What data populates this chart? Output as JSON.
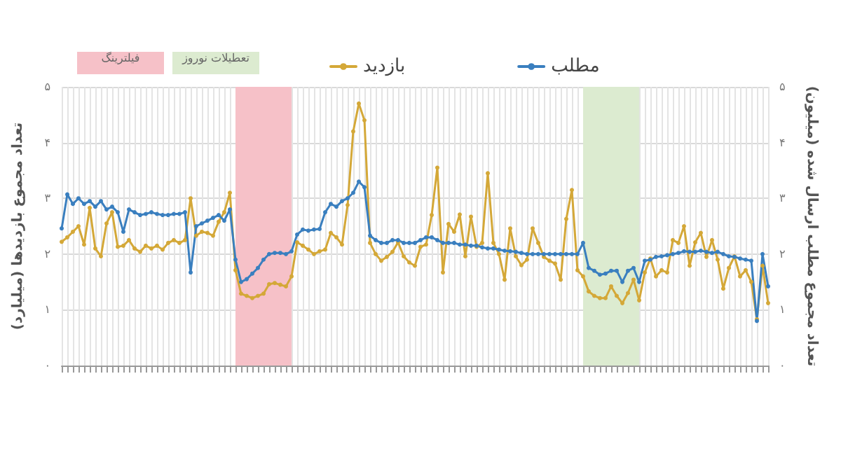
{
  "chart_data": {
    "type": "line",
    "ylabel": "تعداد مجموع بازدیدها (میلیارد)",
    "y2label": "تعداد مجموع مطلب ارسال شده (میلیون)",
    "categories": [
      null,
      null,
      null,
      null,
      null,
      null,
      null,
      null,
      null,
      null,
      null,
      null,
      null,
      null,
      null,
      null,
      null,
      null,
      null,
      null,
      null,
      null,
      null,
      null,
      null,
      null,
      null,
      null,
      null,
      null,
      null,
      null,
      null,
      null,
      null,
      null,
      null,
      null,
      null,
      null,
      null,
      null,
      null,
      null,
      null,
      null,
      null,
      null,
      null,
      null,
      null,
      null,
      null,
      null,
      null,
      null,
      null,
      null,
      null,
      null,
      null,
      null,
      null,
      null,
      null,
      null,
      null,
      null,
      null,
      null,
      null,
      null,
      null,
      null,
      null,
      null,
      null,
      null,
      null,
      null,
      null,
      null,
      null,
      null,
      null,
      null,
      null,
      null,
      null,
      null,
      null,
      null,
      null,
      null,
      null,
      null,
      null,
      null,
      null,
      null,
      null,
      null,
      null,
      null,
      null,
      null,
      null,
      null,
      null,
      null,
      null,
      null,
      null,
      null,
      null,
      null,
      null,
      null,
      null,
      null,
      null,
      null,
      null,
      null,
      null,
      null,
      null
    ],
    "series": [
      {
        "name": "بازدید",
        "color": "#d4a838",
        "values": [
          2.22,
          2.3,
          2.4,
          2.5,
          2.17,
          2.83,
          2.1,
          1.96,
          2.55,
          2.75,
          2.13,
          2.15,
          2.25,
          2.1,
          2.04,
          2.15,
          2.1,
          2.15,
          2.08,
          2.2,
          2.25,
          2.2,
          2.25,
          3.0,
          2.33,
          2.4,
          2.38,
          2.33,
          2.58,
          2.75,
          3.1,
          1.71,
          1.29,
          1.25,
          1.21,
          1.25,
          1.29,
          1.46,
          1.48,
          1.45,
          1.42,
          1.6,
          2.21,
          2.15,
          2.08,
          2.0,
          2.05,
          2.08,
          2.38,
          2.3,
          2.17,
          2.88,
          4.2,
          4.7,
          4.4,
          2.2,
          2.0,
          1.88,
          1.95,
          2.04,
          2.21,
          1.96,
          1.85,
          1.79,
          2.13,
          2.17,
          2.7,
          3.55,
          1.67,
          2.54,
          2.4,
          2.71,
          1.96,
          2.67,
          2.13,
          2.2,
          3.45,
          2.2,
          2.0,
          1.54,
          2.46,
          1.96,
          1.8,
          1.9,
          2.46,
          2.2,
          1.95,
          1.88,
          1.83,
          1.54,
          2.63,
          3.15,
          1.71,
          1.6,
          1.33,
          1.25,
          1.21,
          1.21,
          1.42,
          1.25,
          1.12,
          1.3,
          1.54,
          1.17,
          1.67,
          1.92,
          1.6,
          1.71,
          1.67,
          2.25,
          2.2,
          2.5,
          1.79,
          2.21,
          2.38,
          1.95,
          2.25,
          1.9,
          1.38,
          1.75,
          1.96,
          1.6,
          1.71,
          1.5,
          0.83,
          1.79,
          1.12
        ]
      },
      {
        "name": "مطلب",
        "color": "#3a7fbf",
        "axis": "y2",
        "values": [
          2.46,
          3.07,
          2.9,
          3.0,
          2.9,
          2.95,
          2.85,
          2.95,
          2.8,
          2.85,
          2.75,
          2.4,
          2.8,
          2.75,
          2.7,
          2.72,
          2.75,
          2.72,
          2.7,
          2.7,
          2.72,
          2.72,
          2.75,
          1.67,
          2.5,
          2.55,
          2.6,
          2.65,
          2.7,
          2.6,
          2.8,
          1.9,
          1.5,
          1.55,
          1.65,
          1.75,
          1.9,
          2.0,
          2.02,
          2.02,
          2.0,
          2.05,
          2.35,
          2.44,
          2.42,
          2.44,
          2.45,
          2.75,
          2.9,
          2.85,
          2.95,
          3.0,
          3.1,
          3.3,
          3.2,
          2.33,
          2.25,
          2.2,
          2.2,
          2.25,
          2.25,
          2.2,
          2.2,
          2.2,
          2.25,
          2.3,
          2.3,
          2.25,
          2.2,
          2.2,
          2.2,
          2.17,
          2.17,
          2.15,
          2.15,
          2.12,
          2.1,
          2.1,
          2.08,
          2.06,
          2.05,
          2.04,
          2.02,
          2.0,
          2.0,
          2.0,
          2.0,
          2.0,
          2.0,
          2.0,
          2.0,
          2.0,
          2.0,
          2.2,
          1.75,
          1.7,
          1.63,
          1.65,
          1.7,
          1.7,
          1.5,
          1.7,
          1.75,
          1.5,
          1.88,
          1.9,
          1.95,
          1.96,
          1.98,
          2.0,
          2.02,
          2.05,
          2.04,
          2.04,
          2.06,
          2.04,
          2.02,
          2.04,
          2.0,
          1.96,
          1.95,
          1.92,
          1.9,
          1.88,
          0.8,
          2.0,
          1.42
        ]
      }
    ],
    "ylim": [
      0,
      5
    ],
    "yticks": [
      {
        "value": 0,
        "label": "۰"
      },
      {
        "value": 1,
        "label": "۱"
      },
      {
        "value": 2,
        "label": "۲"
      },
      {
        "value": 3,
        "label": "۳"
      },
      {
        "value": 4,
        "label": "۴"
      },
      {
        "value": 5,
        "label": "۵"
      }
    ],
    "y2lim": [
      0,
      5
    ],
    "y2ticks": [
      {
        "value": 0,
        "label": "۰"
      },
      {
        "value": 1,
        "label": "۱"
      },
      {
        "value": 2,
        "label": "۲"
      },
      {
        "value": 3,
        "label": "۳"
      },
      {
        "value": 4,
        "label": "۴"
      },
      {
        "value": 5,
        "label": "۵"
      }
    ],
    "annotations": [
      "فیلترینگ",
      "تعطیلات نوروز"
    ],
    "grid": true,
    "legend": "top",
    "marker": "circle",
    "line_style": "solid"
  }
}
